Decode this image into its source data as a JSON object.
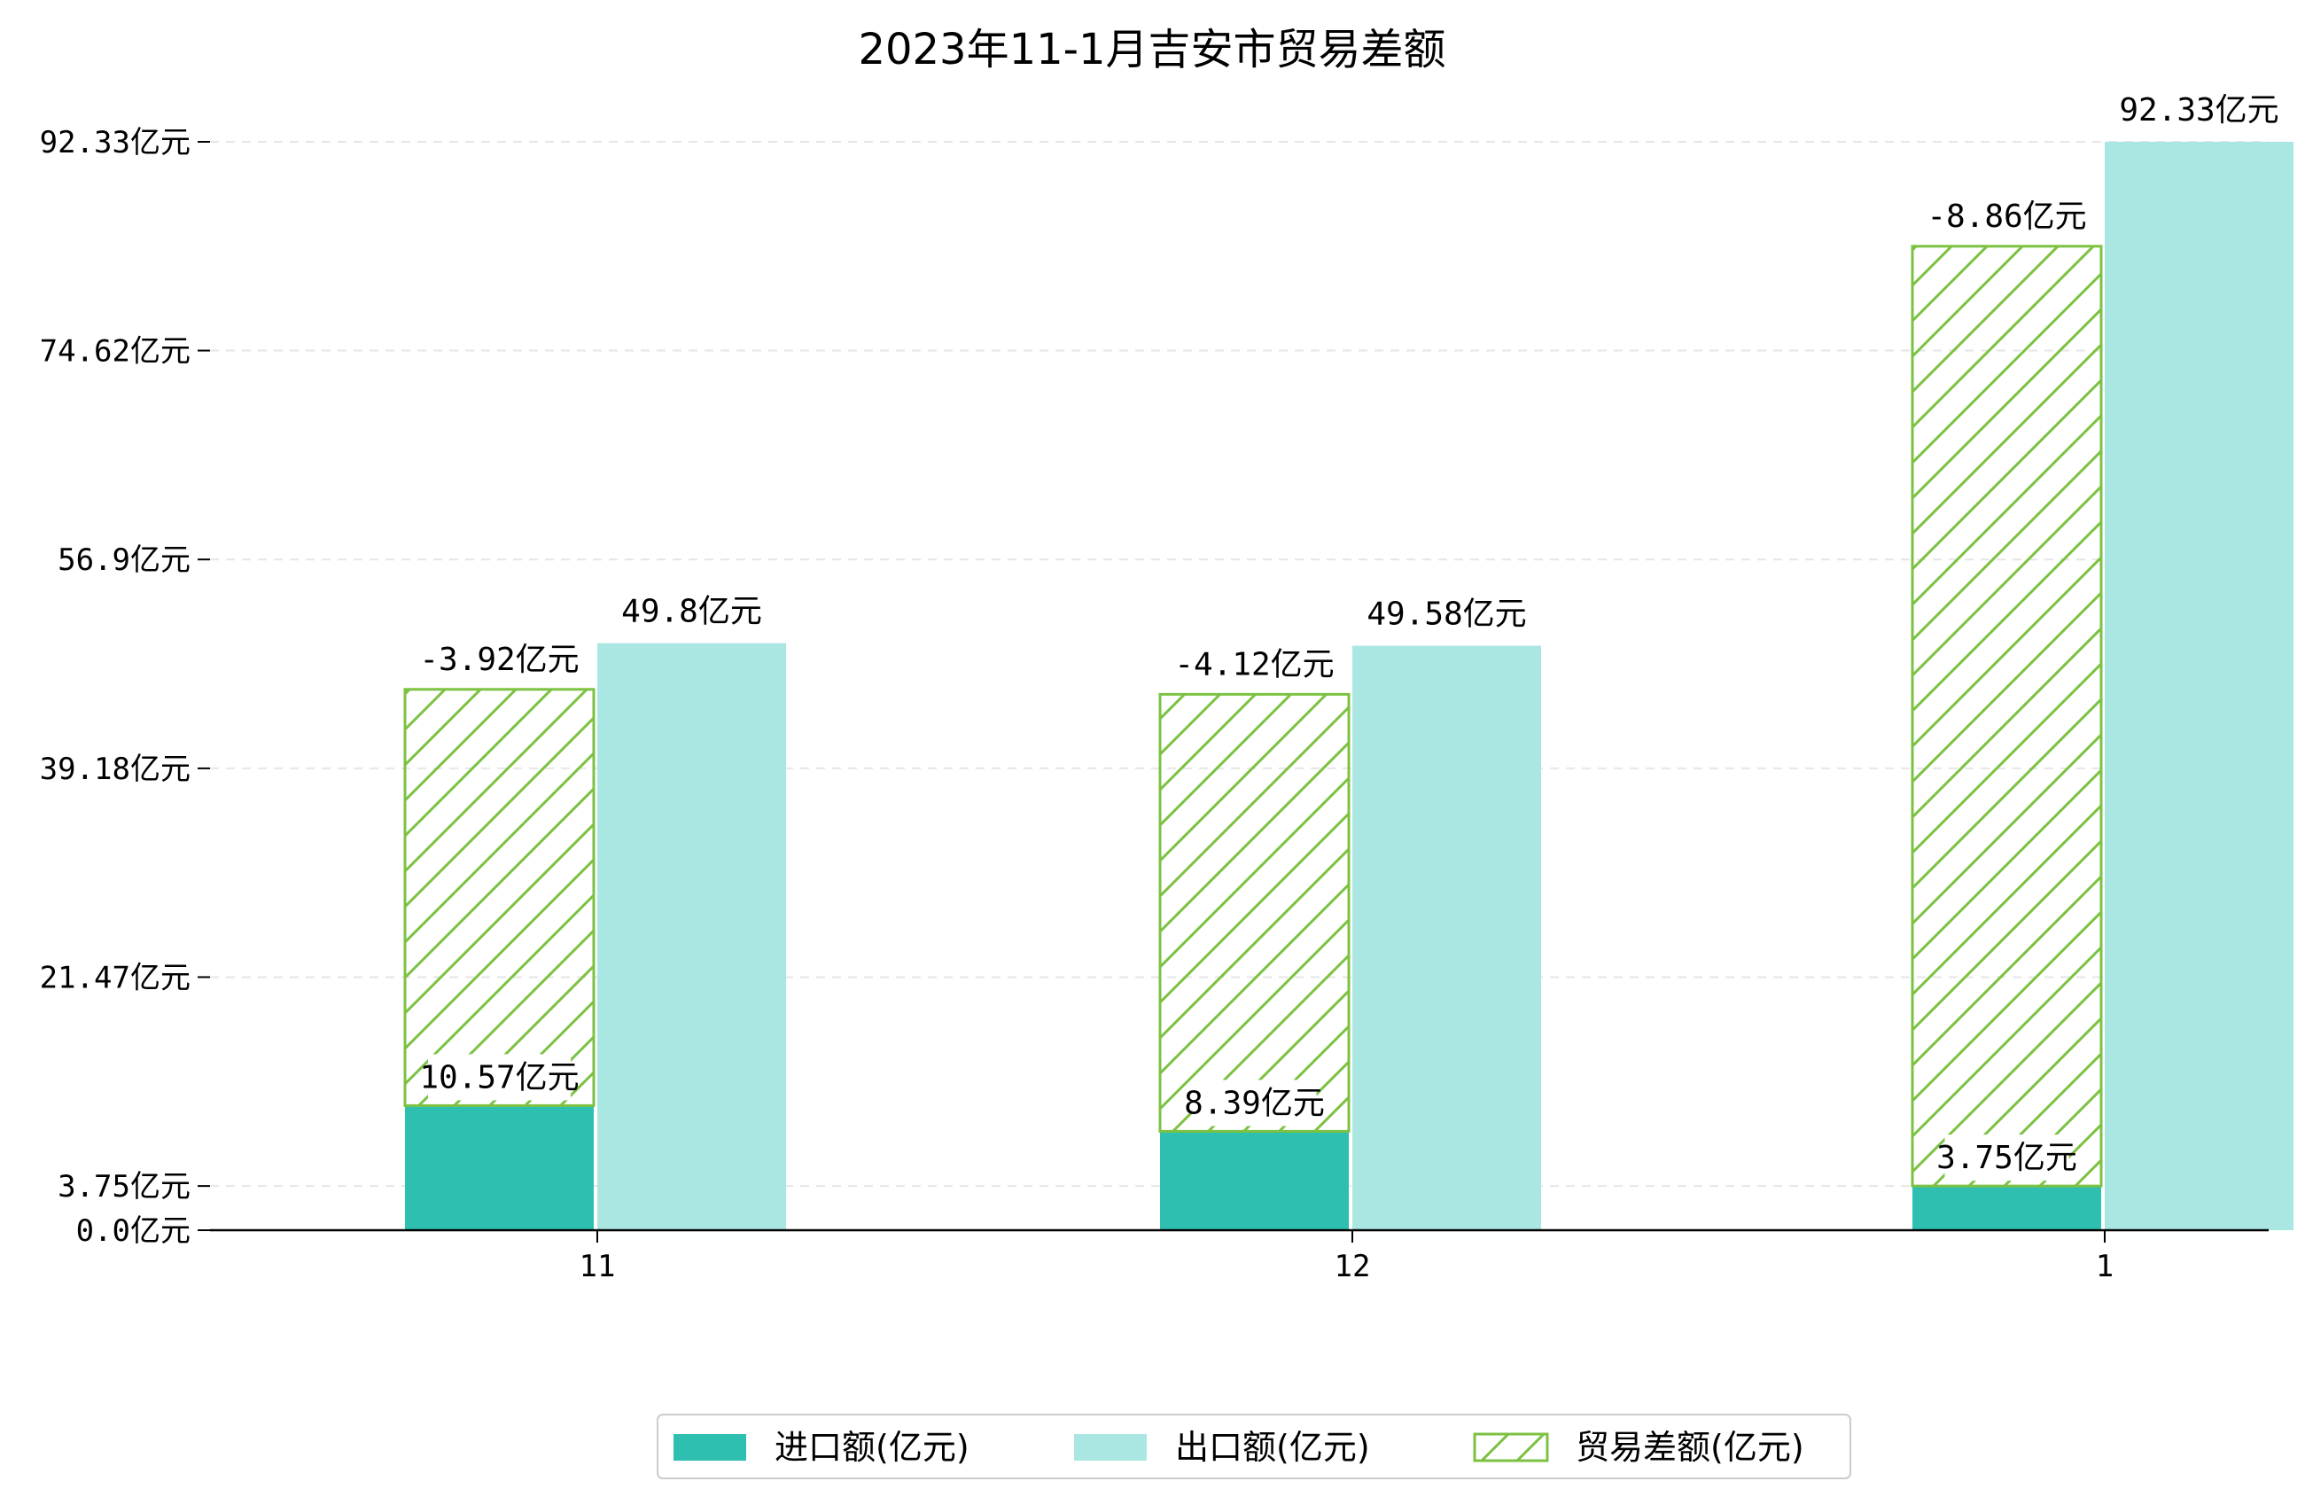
{
  "chart_data": {
    "type": "bar",
    "title": "2023年11-1月吉安市贸易差额",
    "categories": [
      "11",
      "12",
      "1"
    ],
    "series": [
      {
        "name": "进口额(亿元)",
        "values": [
          10.57,
          8.39,
          3.75
        ],
        "labels": [
          "10.57亿元",
          "8.39亿元",
          "3.75亿元"
        ]
      },
      {
        "name": "出口额(亿元)",
        "values": [
          49.8,
          49.58,
          92.33
        ],
        "labels": [
          "49.8亿元",
          "49.58亿元",
          "92.33亿元"
        ]
      },
      {
        "name": "贸易差额(亿元)",
        "values": [
          -3.92,
          -4.12,
          -8.86
        ],
        "labels": [
          "-3.92亿元",
          "-4.12亿元",
          "-8.86亿元"
        ]
      }
    ],
    "yticks": [
      0.0,
      3.75,
      21.47,
      39.18,
      56.9,
      74.62,
      92.33
    ],
    "ytick_labels": [
      "0.0亿元",
      "3.75亿元",
      "21.47亿元",
      "39.18亿元",
      "56.9亿元",
      "74.62亿元",
      "92.33亿元"
    ],
    "ylim": [
      0,
      92.33
    ],
    "grid": true,
    "legend_position": "bottom-center",
    "colors": {
      "import": "#2ebfb1",
      "export": "#aae7e2",
      "balance": "#7cc242",
      "grid": "#e6e6e6"
    }
  }
}
